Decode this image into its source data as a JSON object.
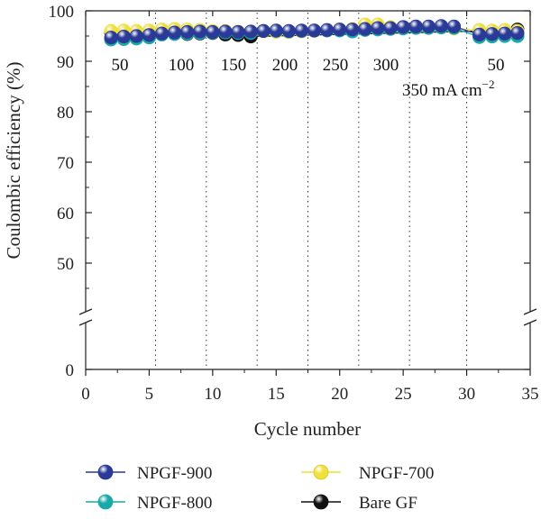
{
  "chart_data": {
    "type": "scatter",
    "xlabel": "Cycle number",
    "ylabel": "Coulombic efficiency (%)",
    "xlim": [
      0,
      35
    ],
    "ylim": [
      0,
      100
    ],
    "y_axis_break": [
      0,
      40
    ],
    "x_ticks": [
      "0",
      "5",
      "10",
      "15",
      "20",
      "25",
      "30",
      "35"
    ],
    "y_ticks": [
      "0",
      "50",
      "60",
      "70",
      "80",
      "90",
      "100"
    ],
    "rate_labels": [
      "50",
      "100",
      "150",
      "200",
      "250",
      "300",
      "50"
    ],
    "current_density_label": "350 mA cm",
    "current_density_exponent": "−2",
    "segment_boundaries": [
      5.5,
      9.5,
      13.5,
      17.5,
      21.5,
      25.5,
      30
    ],
    "legend_position": "bottom",
    "series": [
      {
        "name": "NPGF-900",
        "color": "#2a3a96",
        "x": [
          2,
          3,
          4,
          5,
          6,
          7,
          8,
          9,
          10,
          11,
          12,
          13,
          14,
          15,
          16,
          17,
          18,
          19,
          20,
          21,
          22,
          23,
          24,
          25,
          26,
          27,
          28,
          29,
          31,
          32,
          33,
          34
        ],
        "y": [
          94.7,
          94.9,
          95.0,
          95.2,
          95.5,
          95.7,
          95.8,
          95.9,
          95.8,
          95.9,
          95.8,
          95.9,
          96.0,
          96.1,
          96.0,
          96.1,
          96.1,
          96.2,
          96.3,
          96.3,
          96.4,
          96.6,
          96.6,
          96.8,
          96.9,
          96.9,
          97.0,
          96.9,
          95.3,
          95.4,
          95.5,
          95.6
        ]
      },
      {
        "name": "NPGF-800",
        "color": "#1aa9a9",
        "x": [
          2,
          3,
          4,
          5,
          6,
          7,
          8,
          9,
          10,
          11,
          12,
          13,
          14,
          15,
          16,
          17,
          18,
          19,
          20,
          21,
          22,
          23,
          24,
          25,
          26,
          27,
          28,
          29,
          31,
          32,
          33,
          34
        ],
        "y": [
          94.3,
          94.4,
          94.5,
          94.7,
          95.3,
          95.4,
          95.5,
          95.6,
          95.7,
          95.7,
          95.6,
          95.6,
          96.0,
          96.0,
          95.9,
          96.0,
          96.1,
          96.1,
          96.1,
          95.9,
          96.2,
          96.3,
          96.4,
          96.5,
          96.6,
          96.6,
          96.7,
          96.6,
          94.8,
          94.9,
          95.0,
          95.0
        ]
      },
      {
        "name": "NPGF-700",
        "color": "#f0e03c",
        "x": [
          2,
          3,
          4,
          5,
          6,
          7,
          8,
          9,
          10,
          11,
          12,
          13,
          14,
          15,
          16,
          17,
          18,
          19,
          20,
          21,
          22,
          23,
          24,
          25,
          26,
          27,
          28,
          29,
          31,
          32,
          33,
          34
        ],
        "y": [
          96.0,
          96.1,
          96.0,
          96.1,
          96.3,
          96.4,
          96.3,
          96.2,
          96.0,
          96.0,
          95.9,
          95.8,
          95.9,
          95.8,
          95.8,
          95.9,
          96.0,
          96.1,
          96.2,
          96.4,
          97.3,
          97.3,
          96.8,
          96.7,
          96.6,
          96.6,
          96.7,
          96.5,
          96.2,
          96.1,
          96.2,
          96.0
        ]
      },
      {
        "name": "Bare GF",
        "color": "#111111",
        "x": [
          2,
          3,
          4,
          5,
          6,
          7,
          8,
          9,
          10,
          11,
          12,
          13,
          31,
          32,
          33,
          34
        ],
        "y": [
          95.7,
          95.6,
          95.5,
          95.8,
          95.6,
          95.5,
          95.4,
          95.5,
          95.6,
          95.3,
          95.2,
          94.9,
          96.0,
          95.8,
          96.1,
          96.3
        ]
      }
    ]
  }
}
